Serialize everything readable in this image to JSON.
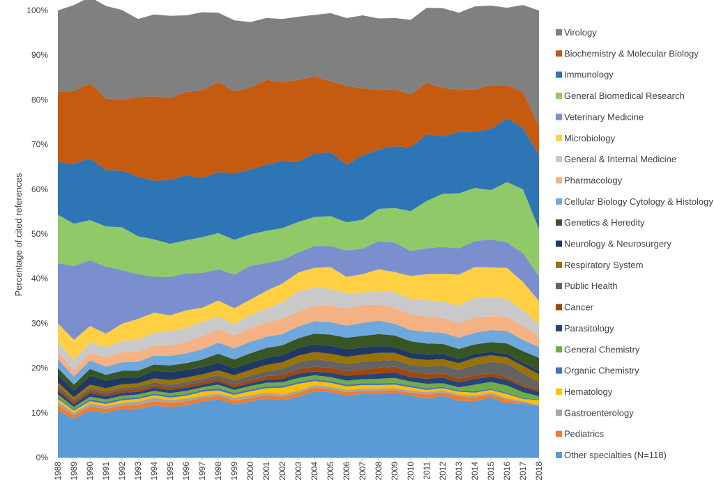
{
  "chart_data": {
    "type": "area",
    "stacked": true,
    "normalized": true,
    "x": [
      "1988",
      "1989",
      "1990",
      "1991",
      "1992",
      "1993",
      "1994",
      "1995",
      "1996",
      "1997",
      "1998",
      "1999",
      "2000",
      "2001",
      "2002",
      "2003",
      "2004",
      "2005",
      "2006",
      "2007",
      "2008",
      "2009",
      "2010",
      "2011",
      "2012",
      "2013",
      "2014",
      "2015",
      "2016",
      "2017",
      "2018"
    ],
    "ylabel": "Percentage of cited references",
    "ylim": [
      0,
      100
    ],
    "yticks": [
      "0%",
      "10%",
      "20%",
      "30%",
      "40%",
      "50%",
      "60%",
      "70%",
      "80%",
      "90%",
      "100%"
    ],
    "grid": false,
    "legend_position": "right",
    "series": [
      {
        "name": "Other specialties (N=118)",
        "color": "#5b9bd5",
        "values": [
          10.5,
          8.7,
          10.5,
          10.0,
          10.8,
          10.9,
          11.6,
          11.3,
          11.6,
          12.5,
          13.0,
          11.9,
          12.5,
          13.2,
          12.8,
          13.6,
          14.8,
          14.6,
          13.8,
          14.3,
          14.1,
          14.5,
          13.8,
          13.2,
          13.8,
          12.7,
          12.6,
          13.4,
          12.1,
          12.0,
          11.6
        ]
      },
      {
        "name": "Pediatrics",
        "color": "#ed7d31",
        "values": [
          1.2,
          0.8,
          0.9,
          0.9,
          0.8,
          0.9,
          1.0,
          0.9,
          1.0,
          0.8,
          0.8,
          0.9,
          0.8,
          0.8,
          0.8,
          0.9,
          0.8,
          0.7,
          0.8,
          0.6,
          0.8,
          0.6,
          0.7,
          0.9,
          0.7,
          1.0,
          0.9,
          0.7,
          0.8,
          0.3,
          0.0
        ]
      },
      {
        "name": "Gastroenterology",
        "color": "#a5a5a5",
        "values": [
          0.8,
          0.5,
          0.7,
          0.6,
          0.6,
          0.7,
          0.8,
          0.6,
          0.6,
          0.5,
          0.5,
          0.6,
          0.6,
          0.5,
          0.5,
          0.5,
          0.6,
          0.5,
          0.5,
          0.5,
          0.5,
          0.4,
          0.5,
          0.5,
          0.5,
          0.4,
          0.4,
          0.4,
          0.4,
          0.3,
          0.2
        ]
      },
      {
        "name": "Hematology",
        "color": "#ffc000",
        "values": [
          0.6,
          0.5,
          0.5,
          0.5,
          0.6,
          0.6,
          0.5,
          0.6,
          0.6,
          0.9,
          0.7,
          0.6,
          0.9,
          1.0,
          1.5,
          1.5,
          0.9,
          0.9,
          0.8,
          0.8,
          0.8,
          0.8,
          0.7,
          0.5,
          0.5,
          0.6,
          0.6,
          0.6,
          0.9,
          0.5,
          1.0
        ]
      },
      {
        "name": "Organic Chemistry",
        "color": "#4472c4",
        "values": [
          0.4,
          0.3,
          0.4,
          0.4,
          0.4,
          0.4,
          0.4,
          0.4,
          0.4,
          0.4,
          0.5,
          0.4,
          0.4,
          0.4,
          0.4,
          0.4,
          0.4,
          0.4,
          0.4,
          0.4,
          0.4,
          0.4,
          0.4,
          0.4,
          0.3,
          0.3,
          0.3,
          0.3,
          0.3,
          0.2,
          0.2
        ]
      },
      {
        "name": "General Chemistry",
        "color": "#70ad47",
        "values": [
          0.6,
          0.5,
          0.6,
          0.6,
          0.6,
          0.6,
          0.6,
          0.6,
          0.7,
          0.6,
          0.8,
          0.7,
          0.8,
          0.8,
          0.8,
          0.9,
          0.9,
          0.9,
          0.9,
          0.9,
          1.0,
          1.1,
          0.9,
          1.0,
          0.8,
          0.7,
          1.5,
          1.5,
          1.6,
          1.3,
          0.7
        ]
      },
      {
        "name": "Parasitology",
        "color": "#264478",
        "values": [
          0.8,
          0.6,
          0.8,
          0.7,
          0.7,
          0.6,
          0.7,
          0.7,
          0.7,
          0.6,
          0.7,
          0.6,
          0.6,
          0.7,
          0.8,
          1.0,
          0.8,
          1.0,
          1.1,
          1.0,
          1.2,
          1.2,
          1.0,
          1.1,
          1.3,
          1.1,
          1.3,
          1.2,
          1.3,
          1.2,
          1.0
        ]
      },
      {
        "name": "Cancer",
        "color": "#9e480e",
        "values": [
          0.6,
          0.5,
          0.6,
          0.6,
          0.6,
          0.6,
          0.6,
          0.6,
          0.6,
          0.6,
          0.6,
          0.6,
          0.7,
          0.8,
          0.9,
          1.0,
          1.1,
          1.1,
          1.0,
          1.2,
          1.3,
          1.3,
          1.2,
          1.1,
          0.9,
          0.8,
          0.8,
          0.8,
          0.6,
          0.5,
          0.5
        ]
      },
      {
        "name": "Public Health",
        "color": "#636363",
        "values": [
          0.5,
          0.5,
          0.5,
          0.5,
          0.5,
          0.5,
          0.6,
          0.6,
          0.7,
          0.7,
          0.8,
          0.9,
          1.0,
          1.1,
          1.3,
          1.5,
          1.7,
          1.5,
          1.6,
          1.7,
          1.6,
          1.5,
          1.5,
          1.6,
          1.8,
          2.0,
          2.3,
          2.5,
          3.0,
          2.6,
          1.5
        ]
      },
      {
        "name": "Respiratory System",
        "color": "#997300",
        "values": [
          0.8,
          0.6,
          0.8,
          0.7,
          0.8,
          0.8,
          0.9,
          1.0,
          1.0,
          1.0,
          1.1,
          1.2,
          1.3,
          1.4,
          1.5,
          1.5,
          1.6,
          1.6,
          1.6,
          1.6,
          1.7,
          1.6,
          1.5,
          1.5,
          1.4,
          1.5,
          1.6,
          1.5,
          1.4,
          1.6,
          1.9
        ]
      },
      {
        "name": "Neurology & Neurosurgery",
        "color": "#203864",
        "values": [
          1.7,
          1.4,
          2.0,
          1.7,
          1.5,
          1.3,
          1.7,
          1.8,
          1.7,
          1.6,
          1.7,
          1.6,
          1.6,
          1.6,
          1.6,
          1.7,
          1.7,
          1.8,
          1.7,
          1.6,
          1.5,
          1.3,
          1.2,
          1.2,
          1.1,
          0.9,
          0.9,
          0.7,
          0.8,
          0.7,
          0.8
        ]
      },
      {
        "name": "Genetics & Heredity",
        "color": "#375623",
        "values": [
          1.5,
          1.4,
          1.5,
          1.3,
          1.5,
          1.5,
          1.4,
          1.5,
          1.5,
          1.7,
          2.0,
          1.9,
          2.1,
          2.2,
          2.2,
          2.2,
          2.4,
          2.5,
          2.6,
          2.6,
          2.7,
          2.6,
          2.6,
          2.5,
          2.3,
          2.3,
          2.1,
          2.2,
          2.3,
          2.6,
          2.9
        ]
      },
      {
        "name": "Cellular Biology Cytology & Histology",
        "color": "#6fa8dc",
        "values": [
          2.0,
          1.8,
          1.9,
          1.8,
          1.9,
          2.0,
          2.0,
          2.1,
          2.2,
          2.3,
          2.5,
          2.5,
          2.6,
          2.5,
          2.5,
          2.6,
          2.8,
          2.8,
          2.7,
          2.9,
          3.0,
          2.6,
          2.5,
          2.6,
          2.5,
          2.5,
          2.6,
          2.7,
          2.8,
          2.5,
          2.4
        ]
      },
      {
        "name": "Pharmacology",
        "color": "#f4b183",
        "values": [
          1.5,
          1.4,
          1.7,
          2.0,
          2.2,
          2.2,
          2.2,
          2.4,
          2.5,
          2.9,
          3.0,
          2.9,
          3.0,
          3.2,
          3.5,
          3.3,
          3.5,
          3.7,
          3.8,
          4.0,
          3.6,
          3.6,
          3.5,
          3.5,
          3.3,
          3.3,
          3.5,
          3.1,
          3.2,
          3.1,
          2.5
        ]
      },
      {
        "name": "General & Internal Medicine",
        "color": "#c9c9c9",
        "values": [
          2.3,
          2.3,
          2.4,
          2.4,
          2.6,
          2.7,
          2.9,
          3.2,
          3.2,
          3.2,
          2.8,
          2.5,
          3.0,
          3.1,
          3.6,
          4.6,
          4.0,
          3.7,
          3.4,
          2.8,
          3.0,
          3.5,
          3.4,
          3.6,
          3.7,
          3.9,
          4.3,
          4.3,
          4.0,
          3.5,
          2.6
        ]
      },
      {
        "name": "Microbiology",
        "color": "#ffd044",
        "values": [
          4.2,
          4.5,
          3.6,
          3.0,
          3.8,
          4.7,
          4.5,
          3.5,
          3.9,
          3.2,
          3.6,
          3.6,
          3.4,
          4.0,
          4.2,
          4.2,
          4.4,
          4.9,
          3.7,
          4.1,
          4.9,
          4.5,
          5.2,
          5.8,
          6.2,
          6.9,
          6.9,
          6.6,
          6.9,
          6.4,
          5.2
        ]
      },
      {
        "name": "Veterinary Medicine",
        "color": "#7b8fcf",
        "values": [
          13.5,
          16.5,
          14.7,
          15.0,
          12.0,
          10.0,
          8.0,
          8.6,
          8.3,
          7.8,
          7.0,
          7.5,
          7.6,
          6.2,
          5.3,
          4.5,
          4.9,
          4.7,
          5.9,
          5.7,
          6.3,
          6.6,
          5.6,
          5.8,
          6.0,
          5.9,
          5.8,
          6.3,
          5.7,
          6.4,
          5.5
        ]
      },
      {
        "name": "General Biomedical Research",
        "color": "#8fc968",
        "values": [
          10.8,
          9.5,
          9.0,
          9.0,
          9.6,
          8.5,
          8.4,
          7.4,
          7.4,
          8.0,
          8.1,
          7.8,
          7.0,
          7.2,
          7.1,
          6.8,
          6.5,
          6.7,
          6.3,
          6.5,
          7.2,
          7.7,
          8.9,
          10.6,
          11.9,
          12.3,
          11.9,
          11.0,
          13.5,
          14.3,
          10.6
        ]
      },
      {
        "name": "Immunology",
        "color": "#2e75b6",
        "values": [
          11.8,
          13.4,
          13.8,
          12.6,
          12.7,
          13.3,
          13.1,
          14.3,
          14.5,
          13.2,
          13.6,
          14.9,
          14.5,
          14.8,
          15.0,
          13.5,
          14.2,
          14.3,
          12.9,
          14.4,
          13.3,
          13.8,
          14.3,
          14.9,
          12.8,
          13.7,
          12.6,
          13.7,
          14.3,
          13.7,
          16.6
        ]
      },
      {
        "name": "Biochemistry & Molecular Biology",
        "color": "#c55a11",
        "values": [
          15.7,
          16.3,
          16.8,
          16.0,
          15.9,
          17.8,
          18.9,
          18.3,
          18.7,
          19.6,
          20.2,
          18.3,
          18.3,
          19.0,
          17.6,
          18.3,
          17.2,
          15.9,
          17.6,
          15.0,
          13.3,
          12.8,
          11.8,
          11.5,
          10.9,
          9.4,
          9.4,
          9.8,
          7.4,
          8.0,
          6.3
        ]
      },
      {
        "name": "Virology",
        "color": "#808080",
        "values": [
          18.2,
          19.2,
          19.3,
          20.7,
          20.0,
          17.5,
          18.3,
          18.4,
          17.1,
          17.5,
          15.5,
          15.9,
          14.7,
          13.8,
          14.2,
          14.1,
          13.8,
          15.2,
          15.2,
          16.3,
          16.0,
          15.9,
          16.7,
          16.8,
          17.8,
          17.3,
          18.6,
          17.8,
          17.3,
          19.5,
          26.0
        ]
      }
    ]
  }
}
